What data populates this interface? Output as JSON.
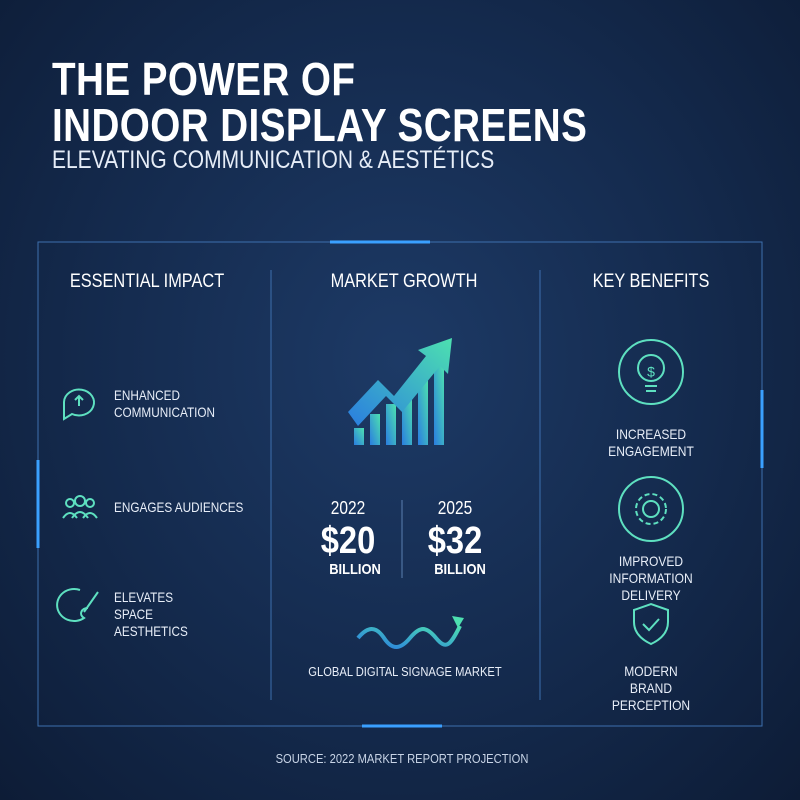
{
  "header": {
    "title": [
      "THE POWER OF",
      "INDOOR DISPLAY SCREENS"
    ],
    "subtitle": "ELEVATING COMMUNICATION & AESTÉTICS"
  },
  "panels": [
    {
      "heading": "ESSENTIAL IMPACT",
      "items": [
        "ENHANCED COMMUNICATION",
        "ENGAGES AUDIENCES",
        "ELEVATES SPACE AESTHETICS"
      ]
    },
    {
      "heading": "MARKET GROWTH",
      "stats": [
        {
          "year": "2022",
          "amount": "$20",
          "unit": "BILLION"
        },
        {
          "year": "2025",
          "amount": "$32",
          "unit": "BILLION"
        }
      ],
      "caption": "GLOBAL DIGITAL SIGNAGE MARKET"
    },
    {
      "heading": "KEY BENEFITS",
      "items": [
        "INCREASED ENGAGEMENT",
        "IMPROVED INFORMATION DELIVERY",
        "MODERN BRAND PERCEPTION"
      ]
    }
  ],
  "footer": {
    "source": "SOURCE: 2022 MARKET REPORT PROJECTION"
  }
}
